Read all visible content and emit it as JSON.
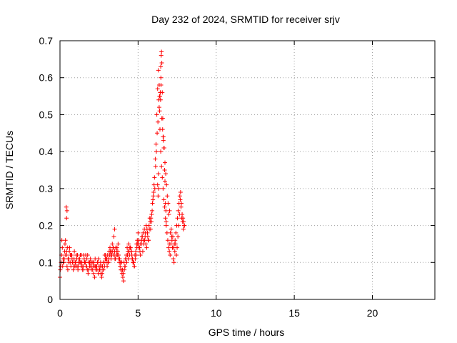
{
  "chart_data": {
    "type": "scatter",
    "title": "Day 232 of 2024, SRMTID for receiver srjv",
    "xlabel": "GPS time / hours",
    "ylabel": "SRMTID / TECUs",
    "xlim": [
      0,
      24
    ],
    "ylim": [
      0,
      0.7
    ],
    "xticks": [
      0,
      5,
      10,
      15,
      20
    ],
    "yticks": [
      0,
      0.1,
      0.2,
      0.3,
      0.4,
      0.5,
      0.6,
      0.7
    ],
    "grid": true,
    "marker": "+",
    "color": "#ff0000",
    "series": [
      {
        "name": "SRMTID",
        "x": [
          0.0,
          0.05,
          0.1,
          0.15,
          0.2,
          0.25,
          0.3,
          0.35,
          0.4,
          0.45,
          0.5,
          0.55,
          0.6,
          0.65,
          0.7,
          0.75,
          0.8,
          0.85,
          0.9,
          0.95,
          1.0,
          1.05,
          1.1,
          1.15,
          1.2,
          1.25,
          1.3,
          1.35,
          1.4,
          1.45,
          1.5,
          1.55,
          1.6,
          1.65,
          1.7,
          1.75,
          1.8,
          1.85,
          1.9,
          1.95,
          2.0,
          2.05,
          2.1,
          2.15,
          2.2,
          2.25,
          2.3,
          2.35,
          2.4,
          2.45,
          2.5,
          2.55,
          2.6,
          2.65,
          2.7,
          2.75,
          2.8,
          2.85,
          2.9,
          2.95,
          3.0,
          3.05,
          3.1,
          3.15,
          3.2,
          3.25,
          3.3,
          3.35,
          3.4,
          3.45,
          3.5,
          3.55,
          3.6,
          3.65,
          3.7,
          3.75,
          3.8,
          3.85,
          3.9,
          3.95,
          4.0,
          4.05,
          4.1,
          4.15,
          4.2,
          4.25,
          4.3,
          4.35,
          4.4,
          4.45,
          4.5,
          4.55,
          4.6,
          4.65,
          4.7,
          4.75,
          4.8,
          4.85,
          4.9,
          4.95,
          5.0,
          5.05,
          5.1,
          5.15,
          5.2,
          5.25,
          5.3,
          5.35,
          5.4,
          5.45,
          5.5,
          5.55,
          5.6,
          5.65,
          5.7,
          5.75,
          5.8,
          5.85,
          5.9,
          5.95,
          6.0,
          6.05,
          6.1,
          6.15,
          6.2,
          6.25,
          6.3,
          6.35,
          6.4,
          6.45,
          6.5,
          6.55,
          6.6,
          6.65,
          6.7,
          6.75,
          6.8,
          6.85,
          6.9,
          6.95,
          7.0,
          7.05,
          7.1,
          7.15,
          7.2,
          7.25,
          7.3,
          7.35,
          7.4,
          7.45,
          7.5,
          7.55,
          7.6,
          7.65,
          7.7,
          7.75,
          7.8,
          7.85,
          7.9,
          7.95,
          0.02,
          0.12,
          0.22,
          0.32,
          0.42,
          0.52,
          0.62,
          0.72,
          0.82,
          0.92,
          1.02,
          1.12,
          1.22,
          1.32,
          1.42,
          1.52,
          1.62,
          1.72,
          1.82,
          1.92,
          2.02,
          2.12,
          2.22,
          2.32,
          2.42,
          2.52,
          2.62,
          2.72,
          2.82,
          2.92,
          3.02,
          3.12,
          3.22,
          3.32,
          3.42,
          3.52,
          3.62,
          3.72,
          3.82,
          3.92,
          4.02,
          4.12,
          4.22,
          4.32,
          4.42,
          4.52,
          4.62,
          4.72,
          4.82,
          4.92,
          5.02,
          5.12,
          5.22,
          5.32,
          5.42,
          5.52,
          5.62,
          5.72,
          5.82,
          5.92,
          6.02,
          6.12,
          6.22,
          6.32,
          6.42,
          6.52,
          6.62,
          6.72,
          6.82,
          6.92,
          7.02,
          7.12,
          7.22,
          7.32,
          7.42,
          7.52,
          7.62,
          7.72,
          7.82,
          7.92,
          0.07,
          0.17,
          0.27,
          0.37,
          0.47,
          0.57,
          0.67,
          0.77,
          0.87,
          0.97,
          1.07,
          1.17,
          1.27,
          1.37,
          1.47,
          1.57,
          1.67,
          1.77,
          1.87,
          1.97,
          2.07,
          2.17,
          2.27,
          2.37,
          2.47,
          2.57,
          2.67,
          2.77,
          2.87,
          2.97,
          3.07,
          3.17,
          3.27,
          3.37,
          3.47,
          3.57,
          3.67,
          3.77,
          3.87,
          3.97,
          4.07,
          4.17,
          4.27,
          4.37,
          4.47,
          4.57,
          4.67,
          4.77,
          4.87,
          4.97,
          5.07,
          5.17,
          5.27,
          5.37,
          5.47,
          5.57,
          5.67,
          5.77,
          5.87,
          5.97,
          6.07,
          6.17,
          6.27,
          6.37,
          6.47,
          6.57,
          6.67,
          6.77,
          6.87,
          6.97,
          7.07,
          7.17,
          7.27,
          7.37,
          7.47,
          7.57,
          7.67,
          7.77,
          7.87,
          7.97,
          6.4,
          6.45,
          6.48,
          6.5,
          6.52,
          6.55,
          6.58,
          6.6,
          6.62,
          6.65,
          6.35,
          6.38,
          6.42,
          6.44,
          6.46,
          6.3,
          6.32,
          6.7,
          6.72,
          6.75,
          0.4,
          0.45,
          0.42,
          3.5,
          3.45,
          6.25,
          6.28,
          6.78,
          6.8,
          7.0
        ],
        "y": [
          0.06,
          0.09,
          0.12,
          0.14,
          0.11,
          0.1,
          0.13,
          0.16,
          0.12,
          0.09,
          0.08,
          0.11,
          0.13,
          0.1,
          0.09,
          0.12,
          0.1,
          0.08,
          0.11,
          0.09,
          0.1,
          0.12,
          0.09,
          0.08,
          0.1,
          0.11,
          0.12,
          0.09,
          0.1,
          0.08,
          0.09,
          0.11,
          0.1,
          0.12,
          0.09,
          0.08,
          0.07,
          0.1,
          0.09,
          0.11,
          0.09,
          0.08,
          0.1,
          0.07,
          0.09,
          0.11,
          0.08,
          0.09,
          0.1,
          0.07,
          0.09,
          0.08,
          0.1,
          0.09,
          0.07,
          0.08,
          0.1,
          0.09,
          0.11,
          0.1,
          0.11,
          0.12,
          0.1,
          0.13,
          0.14,
          0.12,
          0.13,
          0.15,
          0.14,
          0.12,
          0.13,
          0.11,
          0.12,
          0.14,
          0.13,
          0.12,
          0.1,
          0.09,
          0.08,
          0.1,
          0.08,
          0.07,
          0.1,
          0.09,
          0.11,
          0.12,
          0.14,
          0.13,
          0.15,
          0.12,
          0.14,
          0.13,
          0.12,
          0.11,
          0.1,
          0.09,
          0.12,
          0.13,
          0.15,
          0.16,
          0.18,
          0.16,
          0.14,
          0.12,
          0.15,
          0.17,
          0.13,
          0.16,
          0.19,
          0.17,
          0.15,
          0.14,
          0.18,
          0.16,
          0.2,
          0.22,
          0.19,
          0.21,
          0.24,
          0.27,
          0.29,
          0.33,
          0.38,
          0.42,
          0.5,
          0.57,
          0.62,
          0.52,
          0.46,
          0.4,
          0.36,
          0.33,
          0.3,
          0.27,
          0.25,
          0.22,
          0.2,
          0.18,
          0.16,
          0.14,
          0.13,
          0.12,
          0.15,
          0.17,
          0.14,
          0.11,
          0.1,
          0.13,
          0.15,
          0.12,
          0.14,
          0.17,
          0.2,
          0.23,
          0.27,
          0.25,
          0.22,
          0.21,
          0.19,
          0.2,
          0.08,
          0.16,
          0.1,
          0.15,
          0.13,
          0.11,
          0.14,
          0.12,
          0.1,
          0.13,
          0.09,
          0.12,
          0.11,
          0.1,
          0.09,
          0.12,
          0.1,
          0.11,
          0.08,
          0.1,
          0.1,
          0.09,
          0.06,
          0.09,
          0.1,
          0.08,
          0.07,
          0.09,
          0.1,
          0.12,
          0.09,
          0.11,
          0.13,
          0.12,
          0.14,
          0.11,
          0.13,
          0.15,
          0.11,
          0.08,
          0.06,
          0.08,
          0.11,
          0.12,
          0.13,
          0.14,
          0.11,
          0.1,
          0.11,
          0.14,
          0.15,
          0.13,
          0.16,
          0.18,
          0.16,
          0.2,
          0.17,
          0.19,
          0.22,
          0.26,
          0.31,
          0.36,
          0.45,
          0.54,
          0.56,
          0.49,
          0.43,
          0.37,
          0.31,
          0.26,
          0.24,
          0.19,
          0.17,
          0.15,
          0.18,
          0.22,
          0.26,
          0.29,
          0.23,
          0.21,
          0.1,
          0.09,
          0.11,
          0.12,
          0.14,
          0.1,
          0.12,
          0.11,
          0.09,
          0.1,
          0.11,
          0.09,
          0.1,
          0.12,
          0.08,
          0.1,
          0.09,
          0.12,
          0.1,
          0.09,
          0.08,
          0.1,
          0.09,
          0.08,
          0.11,
          0.09,
          0.06,
          0.08,
          0.12,
          0.11,
          0.1,
          0.12,
          0.11,
          0.13,
          0.12,
          0.14,
          0.12,
          0.11,
          0.1,
          0.07,
          0.05,
          0.09,
          0.1,
          0.11,
          0.14,
          0.13,
          0.1,
          0.09,
          0.12,
          0.15,
          0.14,
          0.15,
          0.17,
          0.15,
          0.18,
          0.19,
          0.16,
          0.21,
          0.23,
          0.28,
          0.3,
          0.4,
          0.48,
          0.55,
          0.58,
          0.46,
          0.41,
          0.34,
          0.28,
          0.23,
          0.18,
          0.16,
          0.14,
          0.16,
          0.2,
          0.24,
          0.28,
          0.26,
          0.22,
          0.2,
          0.55,
          0.63,
          0.66,
          0.67,
          0.64,
          0.56,
          0.49,
          0.44,
          0.44,
          0.41,
          0.58,
          0.51,
          0.56,
          0.54,
          0.6,
          0.34,
          0.3,
          0.35,
          0.32,
          0.26,
          0.25,
          0.24,
          0.22,
          0.19,
          0.17,
          0.31,
          0.28,
          0.24,
          0.21,
          0.15
        ]
      }
    ]
  }
}
